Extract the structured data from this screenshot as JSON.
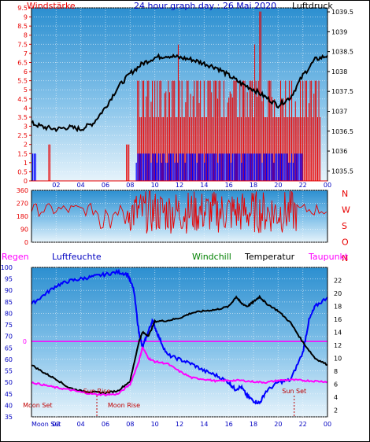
{
  "header": {
    "left_label": "Windstärke",
    "title": "24 hour graph day : 26 Mai 2020",
    "right_label": "Luftdruck"
  },
  "bottom_header": {
    "regen": "Regen",
    "luftfeuchte": "Luftfeuchte",
    "windchill": "Windchill",
    "temperatur": "Temperatur",
    "taupunkt": "Taupunkt"
  },
  "colors": {
    "red": "#e80000",
    "blue": "#0000ff",
    "green": "#008000",
    "magenta": "#ff00ff",
    "black": "#000000",
    "navy_text": "#0000c0"
  },
  "chart_data": [
    {
      "type": "line",
      "name": "wind-pressure",
      "title": "24 hour graph day : 26 Mai 2020",
      "x_ticks": [
        "02",
        "04",
        "06",
        "08",
        "10",
        "12",
        "14",
        "16",
        "18",
        "20",
        "22",
        "00"
      ],
      "x_range": [
        0,
        24
      ],
      "left_axis_label": "Windstärke",
      "left_ylim": [
        0,
        9.5
      ],
      "left_ticks": [
        "0",
        "0.5",
        "1",
        "1.5",
        "2",
        "2.5",
        "3",
        "3.5",
        "4",
        "4.5",
        "5",
        "5.5",
        "6",
        "6.5",
        "7",
        "7.5",
        "8",
        "8.5",
        "9",
        "9.5"
      ],
      "right_axis_label": "Luftdruck",
      "right_ylim": [
        1035.25,
        1039.6
      ],
      "right_ticks": [
        "1035.5",
        "1036",
        "1036.5",
        "1037",
        "1037.5",
        "1038",
        "1038.5",
        "1039",
        "1039.5"
      ],
      "series": [
        {
          "color": "#000000",
          "axis": "right",
          "x": [
            0,
            1,
            2,
            3,
            4,
            5,
            6,
            7,
            8,
            9,
            10,
            11,
            12,
            13,
            14,
            15,
            16,
            17,
            18,
            19,
            20,
            21,
            22,
            23,
            24
          ],
          "values": [
            1036.7,
            1036.6,
            1036.55,
            1036.6,
            1036.55,
            1036.7,
            1037.1,
            1037.6,
            1037.95,
            1038.2,
            1038.35,
            1038.4,
            1038.35,
            1038.3,
            1038.2,
            1038.1,
            1037.9,
            1037.7,
            1037.55,
            1037.35,
            1037.15,
            1037.35,
            1037.9,
            1038.3,
            1038.4
          ]
        }
      ],
      "wind_gust_bars_red": {
        "from_hour": 8.5,
        "to_hour": 23.5,
        "typical": [
          3.5,
          5.5
        ],
        "peak": 9.3
      },
      "wind_avg_bars_blue": {
        "from_hour": 8.5,
        "to_hour": 22,
        "typical": 1.5
      }
    },
    {
      "type": "line",
      "name": "wind-direction",
      "x_range": [
        0,
        24
      ],
      "ylim": [
        0,
        360
      ],
      "left_ticks": [
        "0",
        "90",
        "180",
        "270",
        "360"
      ],
      "right_labels": [
        "N",
        "W",
        "S",
        "O",
        "N"
      ],
      "note": "red wind-direction trace, mostly 180–280°, highly variable 08–20h"
    },
    {
      "type": "line",
      "name": "temperature-humidity",
      "x_ticks": [
        "Moon Set",
        "02",
        "04",
        "06",
        "08",
        "10",
        "12",
        "14",
        "16",
        "18",
        "20",
        "22",
        "00"
      ],
      "x_range": [
        0,
        24
      ],
      "left_ylim": [
        35,
        100
      ],
      "left_ticks": [
        "35",
        "40",
        "45",
        "50",
        "55",
        "60",
        "65",
        "70",
        "75",
        "80",
        "85",
        "90",
        "95",
        "100"
      ],
      "right_ylim": [
        1,
        24
      ],
      "right_ticks": [
        "2",
        "4",
        "6",
        "8",
        "10",
        "12",
        "14",
        "16",
        "18",
        "20",
        "22"
      ],
      "rain_zero_label": "0",
      "rain_baseline_temp": 12.6,
      "annotations": [
        {
          "label": "Moon Set",
          "x_hour": 0.5
        },
        {
          "label": "Sun Rise",
          "x_hour": 5.3
        },
        {
          "label": "Moon Rise",
          "x_hour": 7.5
        },
        {
          "label": "Sun Set",
          "x_hour": 21.3
        }
      ],
      "series": [
        {
          "name": "Luftfeuchte",
          "color": "#0000ff",
          "axis": "left",
          "x": [
            0,
            1,
            2,
            3,
            4,
            5,
            6,
            7,
            7.8,
            8.3,
            8.7,
            9,
            9.4,
            9.8,
            10.3,
            11,
            12,
            13,
            14,
            15,
            16,
            16.5,
            17,
            17.5,
            18,
            18.5,
            19,
            20,
            21,
            22,
            22.5,
            23,
            24
          ],
          "values": [
            84,
            88,
            92,
            94,
            95,
            96,
            97,
            98,
            97,
            90,
            72,
            65,
            71,
            77,
            70,
            62,
            60,
            58,
            55,
            53,
            50,
            47,
            48,
            44,
            42,
            41,
            46,
            50,
            51,
            63,
            77,
            83,
            87
          ]
        },
        {
          "name": "Temperatur",
          "color": "#000000",
          "axis": "right",
          "x": [
            0,
            1,
            2,
            3,
            4,
            5,
            6,
            7,
            8,
            8.7,
            9,
            9.5,
            10,
            11,
            12,
            13,
            14,
            15,
            16,
            16.6,
            17,
            17.5,
            18,
            18.5,
            19,
            20,
            21,
            22,
            23,
            24
          ],
          "values": [
            9,
            7.8,
            6.8,
            5.5,
            5,
            4.8,
            4.7,
            5,
            6.5,
            12.5,
            14,
            13.5,
            15.7,
            15.8,
            16.2,
            17,
            17.3,
            17.5,
            18,
            19.5,
            18.5,
            18,
            18.7,
            19.5,
            18.5,
            17.3,
            15.5,
            12.5,
            10,
            9
          ]
        },
        {
          "name": "Taupunkt",
          "color": "#ff00ff",
          "axis": "right",
          "x": [
            0,
            1,
            2,
            3,
            4,
            5,
            6,
            7,
            8,
            8.7,
            9,
            9.5,
            10,
            11,
            12,
            13,
            14,
            15,
            16,
            17,
            18,
            19,
            20,
            21,
            22,
            23,
            24
          ],
          "values": [
            6.3,
            5.9,
            5.5,
            5.2,
            4.8,
            4.5,
            4.4,
            4.5,
            6,
            9.5,
            11.7,
            10,
            9.5,
            9.2,
            8,
            7,
            6.8,
            6.5,
            6.6,
            6.6,
            6.4,
            6.3,
            6.6,
            6.7,
            6.6,
            6.5,
            6.4
          ]
        }
      ]
    }
  ]
}
